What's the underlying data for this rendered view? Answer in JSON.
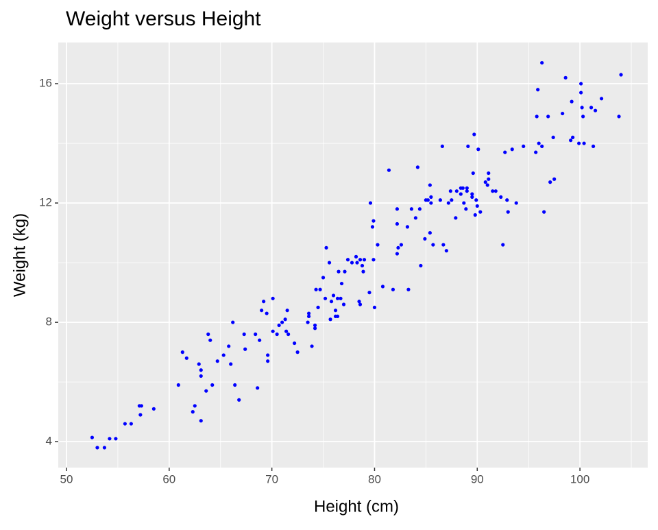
{
  "chart_data": {
    "type": "scatter",
    "title": "Weight versus Height",
    "x_label": "Height (cm)",
    "y_label": "Weight (kg)",
    "color": "#0000ff",
    "grid": true,
    "xlim": [
      49.2,
      106.6
    ],
    "ylim": [
      3.13,
      17.38
    ],
    "xticks": [
      50,
      60,
      70,
      80,
      90,
      100
    ],
    "yticks": [
      4,
      8,
      12,
      16
    ],
    "series": [
      {
        "name": "Weight",
        "color": "#0000ff",
        "x": [
          52.5,
          53.0,
          53.7,
          54.2,
          54.8,
          55.7,
          56.3,
          57.1,
          57.3,
          57.2,
          58.5,
          60.9,
          61.3,
          61.7,
          62.3,
          62.5,
          62.9,
          63.1,
          63.1,
          63.1,
          63.6,
          63.8,
          64.0,
          64.2,
          64.7,
          65.3,
          65.8,
          66.0,
          66.2,
          66.4,
          66.8,
          67.3,
          67.4,
          68.4,
          68.6,
          68.8,
          69.0,
          69.2,
          69.5,
          69.6,
          69.6,
          70.1,
          70.1,
          70.5,
          70.7,
          71.0,
          71.3,
          71.5,
          71.4,
          71.6,
          72.2,
          72.5,
          73.5,
          73.6,
          73.6,
          73.9,
          74.2,
          74.2,
          74.3,
          74.5,
          74.7,
          75.0,
          75.2,
          75.3,
          75.6,
          75.7,
          75.8,
          76.0,
          76.2,
          76.2,
          76.4,
          76.4,
          76.5,
          76.7,
          76.8,
          77.0,
          77.1,
          77.4,
          77.8,
          78.2,
          78.3,
          78.5,
          78.6,
          78.6,
          78.8,
          79.0,
          78.9,
          79.5,
          79.6,
          79.8,
          79.9,
          79.9,
          80.0,
          80.3,
          80.8,
          81.4,
          81.8,
          82.2,
          82.2,
          82.2,
          82.3,
          82.6,
          83.2,
          83.3,
          83.6,
          84.0,
          84.2,
          84.4,
          84.5,
          84.9,
          85.0,
          85.2,
          85.4,
          85.4,
          85.5,
          85.5,
          85.7,
          86.4,
          86.6,
          86.7,
          87.0,
          87.2,
          87.4,
          87.5,
          87.9,
          88.0,
          88.4,
          88.4,
          88.6,
          88.7,
          88.9,
          89.0,
          89.1,
          89.0,
          89.5,
          89.5,
          89.6,
          89.7,
          89.8,
          89.9,
          90.0,
          90.1,
          90.3,
          90.8,
          91.0,
          91.1,
          91.1,
          91.5,
          91.8,
          92.3,
          92.5,
          92.7,
          93.0,
          92.9,
          93.4,
          93.8,
          94.5,
          95.7,
          95.8,
          95.9,
          96.0,
          96.3,
          96.3,
          96.5,
          96.9,
          97.1,
          97.4,
          97.5,
          98.3,
          98.6,
          99.1,
          99.2,
          99.3,
          99.9,
          100.1,
          100.1,
          100.2,
          100.3,
          100.4,
          101.1,
          101.3,
          101.5,
          102.1,
          103.8,
          104.0
        ],
        "values": [
          4.14,
          3.8,
          3.8,
          4.1,
          4.1,
          4.6,
          4.6,
          5.2,
          5.2,
          4.9,
          5.1,
          5.9,
          7.0,
          6.8,
          5.0,
          5.2,
          6.6,
          6.4,
          6.2,
          4.7,
          5.7,
          7.6,
          7.4,
          5.9,
          6.7,
          6.9,
          7.2,
          6.6,
          8.0,
          5.9,
          5.4,
          7.6,
          7.1,
          7.6,
          5.8,
          7.4,
          8.4,
          8.7,
          8.3,
          6.9,
          6.7,
          8.8,
          7.7,
          7.6,
          7.9,
          8.0,
          8.1,
          8.4,
          7.7,
          7.6,
          7.3,
          7.0,
          8.0,
          8.2,
          8.3,
          7.2,
          7.9,
          7.8,
          9.1,
          8.5,
          9.1,
          9.5,
          8.8,
          10.5,
          10.0,
          8.1,
          8.7,
          8.9,
          8.4,
          8.2,
          8.8,
          8.2,
          9.7,
          8.8,
          9.3,
          8.6,
          9.7,
          10.1,
          10.0,
          10.2,
          10.0,
          8.7,
          8.6,
          10.1,
          9.9,
          10.1,
          9.7,
          9.0,
          12.0,
          11.2,
          11.4,
          10.1,
          8.5,
          10.6,
          9.2,
          13.1,
          9.1,
          11.8,
          10.3,
          11.3,
          10.5,
          10.6,
          11.2,
          9.1,
          11.8,
          11.5,
          13.2,
          11.8,
          9.9,
          10.8,
          12.1,
          12.1,
          12.6,
          11.0,
          12.2,
          12.0,
          10.6,
          12.1,
          13.9,
          10.6,
          10.4,
          12.0,
          12.4,
          12.1,
          11.5,
          12.4,
          12.3,
          12.5,
          12.5,
          12.0,
          11.8,
          12.4,
          13.9,
          12.5,
          12.3,
          12.2,
          13.0,
          14.3,
          11.6,
          12.1,
          11.9,
          13.8,
          11.7,
          12.7,
          12.6,
          12.8,
          13.0,
          12.4,
          12.4,
          12.2,
          10.6,
          13.7,
          11.7,
          12.1,
          13.8,
          12.0,
          13.9,
          13.7,
          14.9,
          15.8,
          14.0,
          13.9,
          16.7,
          11.7,
          14.9,
          12.7,
          14.2,
          12.8,
          15.0,
          16.2,
          14.1,
          15.4,
          14.2,
          14.0,
          16.0,
          15.7,
          15.2,
          14.9,
          14.0,
          15.2,
          13.9,
          15.1,
          15.5,
          14.9,
          16.3
        ]
      }
    ]
  }
}
